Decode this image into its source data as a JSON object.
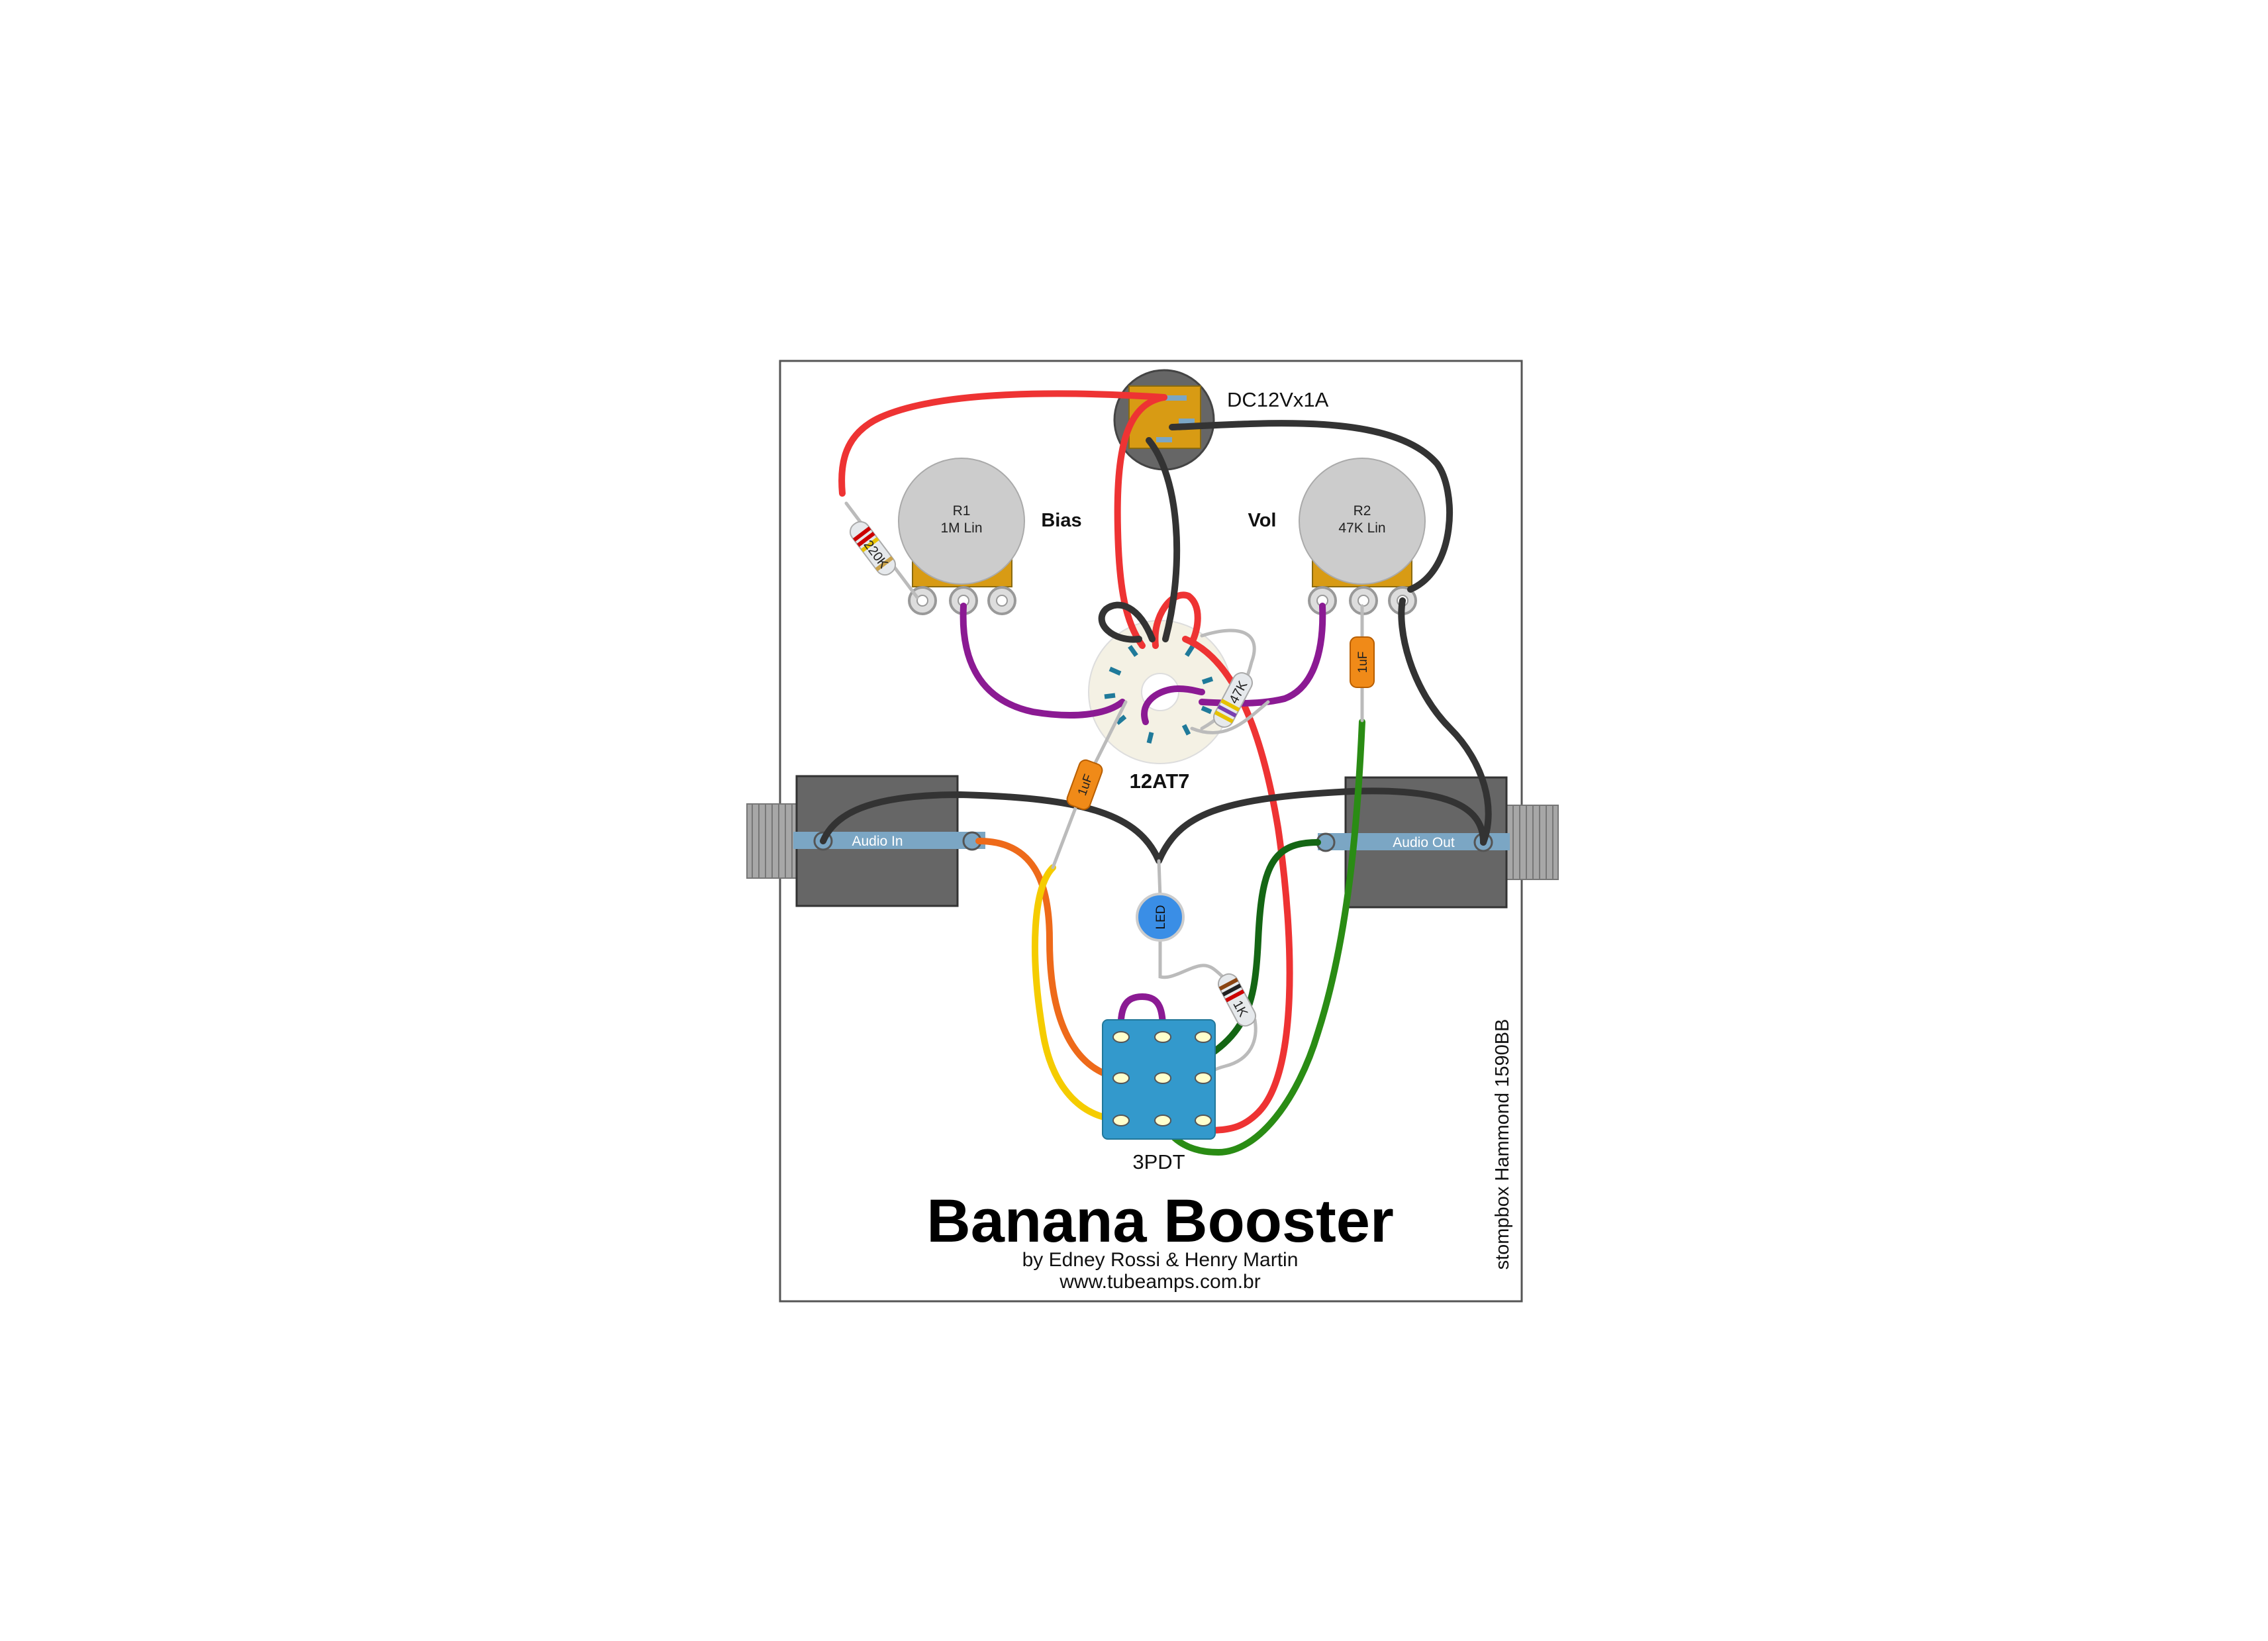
{
  "title": "Banana Booster",
  "credits": "by Edney Rossi & Henry Martin",
  "website": "www.tubeamps.com.br",
  "enclosure_label": "stompbox Hammond 1590BB",
  "power_jack": {
    "label": "DC12Vx1A"
  },
  "pot_r1": {
    "line1": "R1",
    "line2": "1M Lin",
    "name": "Bias"
  },
  "pot_r2": {
    "line1": "R2",
    "line2": "47K Lin",
    "name": "Vol"
  },
  "tube": {
    "label": "12AT7"
  },
  "jack_in": {
    "label": "Audio In"
  },
  "jack_out": {
    "label": "Audio Out"
  },
  "switch": {
    "label": "3PDT"
  },
  "led": {
    "label": "LED"
  },
  "resistors": {
    "r220k": "220K",
    "r47k": "47K",
    "r1k": "1K"
  },
  "capacitors": {
    "c1": "1uF",
    "c2": "1uF"
  },
  "colors": {
    "red": "#ee3333",
    "black": "#333333",
    "purple": "#8b1a93",
    "orange": "#ee6a1a",
    "yellow": "#f5cc00",
    "green": "#2a8c14",
    "dark_green": "#146614",
    "switch_blue": "#3399cc",
    "led_blue": "#3a8ee6",
    "pot_gray": "#cccccc",
    "pot_base": "#d89b14",
    "jack_body": "#666666"
  }
}
